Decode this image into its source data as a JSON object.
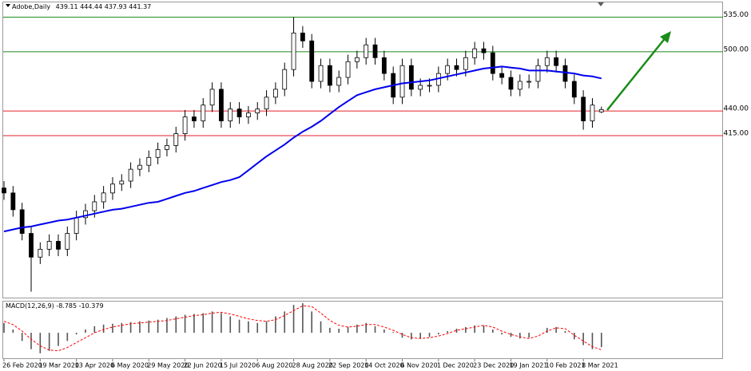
{
  "chart_data": {
    "type": "candlestick",
    "title": "Adobe,Daily",
    "categories": [
      "26 Feb 2020",
      null,
      null,
      null,
      "19 Mar 2020",
      null,
      null,
      null,
      "13 Apr 2020",
      null,
      null,
      null,
      "6 May 2020",
      null,
      null,
      null,
      "29 May 2020",
      null,
      null,
      null,
      "22 Jun 2020",
      null,
      null,
      null,
      "15 Jul 2020",
      null,
      null,
      null,
      "6 Aug 2020",
      null,
      null,
      null,
      "28 Aug 2020",
      null,
      null,
      null,
      "22 Sep 2020",
      null,
      null,
      null,
      "14 Oct 2020",
      null,
      null,
      null,
      "6 Nov 2020",
      null,
      null,
      null,
      "1 Dec 2020",
      null,
      null,
      null,
      "23 Dec 2020",
      null,
      null,
      null,
      "19 Jan 2021",
      null,
      null,
      null,
      "10 Feb 2021",
      null,
      null,
      null,
      "8 Mar 2021",
      null,
      null
    ],
    "open": [
      362,
      357,
      340,
      316,
      292,
      300,
      308,
      300,
      316,
      332,
      339,
      348,
      357,
      366,
      369,
      381,
      385,
      393,
      401,
      405,
      417,
      434,
      430,
      446,
      462,
      430,
      442,
      434,
      438,
      442,
      454,
      462,
      482,
      519,
      511,
      470,
      486,
      466,
      474,
      490,
      494,
      507,
      494,
      478,
      454,
      486,
      462,
      466,
      466,
      478,
      486,
      482,
      494,
      503,
      499,
      478,
      474,
      462,
      470,
      470,
      486,
      494,
      486,
      470,
      454,
      430,
      439.11
    ],
    "high": [
      369,
      364,
      347,
      323,
      307,
      315,
      315,
      323,
      339,
      346,
      355,
      364,
      373,
      376,
      388,
      392,
      400,
      408,
      412,
      424,
      441,
      441,
      453,
      469,
      469,
      449,
      449,
      445,
      449,
      461,
      469,
      489,
      535,
      526,
      518,
      493,
      493,
      481,
      497,
      501,
      514,
      514,
      501,
      485,
      493,
      493,
      473,
      473,
      485,
      493,
      493,
      501,
      510,
      510,
      506,
      485,
      481,
      477,
      477,
      493,
      501,
      501,
      493,
      477,
      461,
      453,
      444.44
    ],
    "low": [
      350,
      333,
      309,
      257,
      285,
      293,
      293,
      293,
      309,
      325,
      332,
      341,
      350,
      359,
      362,
      374,
      378,
      386,
      394,
      398,
      410,
      423,
      423,
      439,
      423,
      423,
      427,
      427,
      431,
      435,
      447,
      455,
      475,
      504,
      463,
      463,
      459,
      459,
      467,
      483,
      487,
      487,
      471,
      447,
      447,
      455,
      455,
      459,
      459,
      471,
      475,
      475,
      487,
      492,
      471,
      467,
      455,
      455,
      463,
      463,
      479,
      479,
      463,
      447,
      421,
      423,
      437.93
    ],
    "close": [
      357,
      340,
      316,
      292,
      300,
      308,
      300,
      316,
      332,
      339,
      348,
      357,
      366,
      369,
      381,
      385,
      393,
      401,
      405,
      417,
      434,
      430,
      446,
      462,
      430,
      442,
      434,
      438,
      442,
      454,
      462,
      482,
      519,
      511,
      470,
      486,
      466,
      474,
      490,
      494,
      507,
      494,
      478,
      454,
      486,
      462,
      466,
      466,
      478,
      486,
      482,
      494,
      503,
      499,
      478,
      474,
      462,
      470,
      470,
      486,
      494,
      486,
      470,
      454,
      430,
      446,
      441.37
    ],
    "up_color": "#ffffff",
    "down_color": "#000000",
    "ylim": [
      251,
      550
    ],
    "yticks": [
      {
        "value": 535,
        "label": "535.00"
      },
      {
        "value": 500,
        "label": "500.00"
      },
      {
        "value": 440,
        "label": "440.00"
      },
      {
        "value": 415,
        "label": "415.00"
      }
    ],
    "ytick_colors": [
      "#1f8a1f",
      "#1f8a1f",
      "#e3202b",
      "#e3202b"
    ],
    "ma": {
      "color": "#0000ee",
      "values": [
        318,
        320,
        322,
        323,
        325,
        327,
        329,
        330,
        332,
        334,
        336,
        338,
        340,
        341,
        343,
        345,
        347,
        348,
        351,
        354,
        357,
        359,
        362,
        365,
        368,
        370,
        373,
        380,
        387,
        394,
        400,
        406,
        413,
        419,
        424,
        430,
        437,
        444,
        450,
        456,
        459,
        462,
        464,
        466,
        468,
        469,
        470,
        471,
        473,
        475,
        477,
        479,
        481,
        483,
        484,
        485,
        484,
        483,
        481,
        481,
        481,
        480,
        479,
        478,
        476,
        475,
        473
      ]
    },
    "macd": {
      "label": "MACD(12,26,9)",
      "ylim": [
        -16,
        19.5
      ],
      "histogram": [
        6,
        2,
        -5,
        -10,
        -12.5,
        -11,
        -8,
        -5,
        -1,
        2,
        4,
        5,
        5.5,
        6,
        6.5,
        7,
        7.5,
        8,
        9,
        10,
        11,
        11.5,
        12,
        13,
        12,
        10,
        8,
        7,
        6,
        7,
        10,
        13,
        17,
        18,
        13,
        7,
        3,
        2.5,
        3.5,
        5,
        6,
        4,
        2,
        0.5,
        -3,
        -4,
        -3.5,
        -2.5,
        -1,
        1,
        2.5,
        3.5,
        4.5,
        4.5,
        2,
        -1,
        -2.5,
        -3.5,
        -3,
        0,
        3,
        3.5,
        1,
        -4,
        -7.5,
        -10,
        -8.785
      ],
      "signal": {
        "color": "#ff0000",
        "values": [
          7,
          5,
          1,
          -4,
          -8,
          -10.5,
          -11,
          -9,
          -6,
          -3,
          0,
          2,
          3.5,
          4.5,
          5.5,
          6,
          6.5,
          7,
          7.5,
          8.5,
          9.5,
          10.5,
          11,
          12,
          12.5,
          11.5,
          10,
          8.5,
          7.5,
          7,
          8,
          10.5,
          13.5,
          16.5,
          16,
          12,
          7.5,
          4.5,
          3.5,
          4,
          5,
          5,
          3.5,
          1.5,
          -1,
          -3,
          -3.5,
          -3,
          -2,
          -0.5,
          1.5,
          2.5,
          3.5,
          4.5,
          3.5,
          1,
          -1,
          -2.5,
          -3.5,
          -2,
          1,
          3,
          2.5,
          -1.5,
          -5,
          -8.5,
          -10.379
        ]
      }
    }
  }
}
